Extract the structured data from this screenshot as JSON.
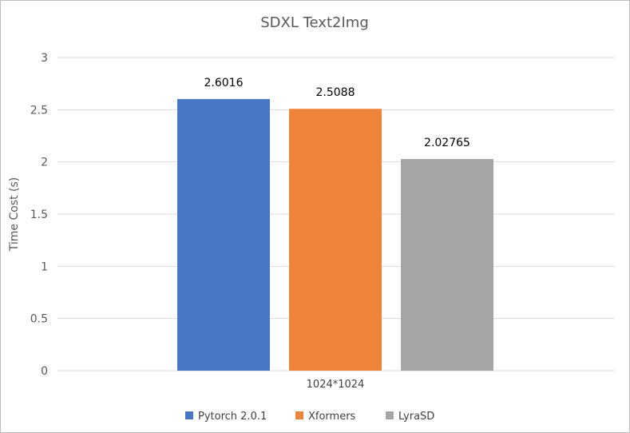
{
  "chart_data": {
    "type": "bar",
    "title": "SDXL Text2Img",
    "xlabel": "",
    "ylabel": "Time Cost (s)",
    "categories": [
      "1024*1024"
    ],
    "ylim": [
      0,
      3
    ],
    "yticks": [
      0,
      0.5,
      1,
      1.5,
      2,
      2.5,
      3
    ],
    "ytick_labels": [
      "0",
      "0.5",
      "1",
      "1.5",
      "2",
      "2.5",
      "3"
    ],
    "grid": true,
    "legend_position": "bottom",
    "series": [
      {
        "name": "Pytorch 2.0.1",
        "values": [
          2.6016
        ],
        "label": "2.6016",
        "color": "#4a76c6"
      },
      {
        "name": "Xformers",
        "values": [
          2.5088
        ],
        "label": "2.5088",
        "color": "#ed843a"
      },
      {
        "name": "LyraSD",
        "values": [
          2.02765
        ],
        "label": "2.02765",
        "color": "#a5a5a5"
      }
    ]
  }
}
